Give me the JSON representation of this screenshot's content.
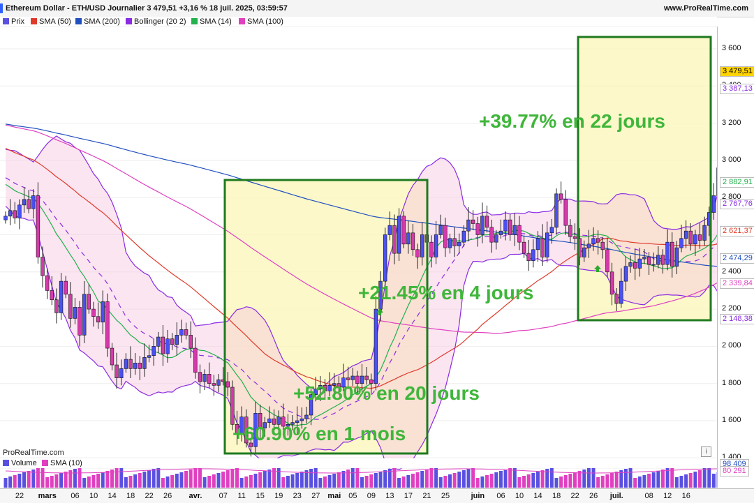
{
  "header": {
    "title": "Ethereum Dollar - ETH/USD Journalier 3 479,51 +3,16 % 18 juil. 2025, 03:59:57",
    "site": "www.ProRealTime.com"
  },
  "legend": [
    {
      "label": "Prix",
      "color": "#5a50e0"
    },
    {
      "label": "SMA (50)",
      "color": "#e03a2a"
    },
    {
      "label": "SMA (200)",
      "color": "#2050c0"
    },
    {
      "label": "Bollinger (20 2)",
      "color": "#8a2be2"
    },
    {
      "label": "SMA (14)",
      "color": "#22b14c"
    },
    {
      "label": "SMA (100)",
      "color": "#e040c0"
    }
  ],
  "watermark": "ProRealTime.com",
  "info_icon": "i",
  "volume_legend": [
    {
      "label": "Volume",
      "color": "#5a50e0"
    },
    {
      "label": "SMA (10)",
      "color": "#e040c0"
    }
  ],
  "volume_tags": [
    "98 409",
    "80 291"
  ],
  "annotations": [
    {
      "text": "+39.77% en 22 jours"
    },
    {
      "text": "+21.45% en 4 jours"
    },
    {
      "text": "+52.80% en 20 jours"
    },
    {
      "text": "+60.90% en 1 mois"
    }
  ],
  "chart_data": {
    "type": "candlestick",
    "title": "Ethereum Dollar - ETH/USD Journalier",
    "last_price": "3 479,51",
    "change": "+3,16 %",
    "ylim": [
      1300,
      3700
    ],
    "y_ticks": [
      1400,
      1600,
      1800,
      2000,
      2200,
      2400,
      2600,
      2800,
      3000,
      3200,
      3400,
      3600
    ],
    "y_tick_labels": [
      "1 400",
      "1 600",
      "1 800",
      "2 000",
      "2 200",
      "2 400",
      "2 600",
      "2 800",
      "3 000",
      "3 200",
      "3 400",
      "3 600"
    ],
    "x_labels": [
      {
        "label": "22",
        "day": 0
      },
      {
        "label": "mars",
        "day": 6,
        "bold": true
      },
      {
        "label": "06",
        "day": 12
      },
      {
        "label": "10",
        "day": 16
      },
      {
        "label": "14",
        "day": 20
      },
      {
        "label": "18",
        "day": 24
      },
      {
        "label": "22",
        "day": 28
      },
      {
        "label": "26",
        "day": 32
      },
      {
        "label": "avr.",
        "day": 38,
        "bold": true
      },
      {
        "label": "07",
        "day": 44
      },
      {
        "label": "11",
        "day": 48
      },
      {
        "label": "15",
        "day": 52
      },
      {
        "label": "19",
        "day": 56
      },
      {
        "label": "23",
        "day": 60
      },
      {
        "label": "27",
        "day": 64
      },
      {
        "label": "mai",
        "day": 68,
        "bold": true
      },
      {
        "label": "05",
        "day": 72
      },
      {
        "label": "09",
        "day": 76
      },
      {
        "label": "13",
        "day": 80
      },
      {
        "label": "17",
        "day": 84
      },
      {
        "label": "21",
        "day": 88
      },
      {
        "label": "25",
        "day": 92
      },
      {
        "label": "juin",
        "day": 99,
        "bold": true
      },
      {
        "label": "06",
        "day": 104
      },
      {
        "label": "10",
        "day": 108
      },
      {
        "label": "14",
        "day": 112
      },
      {
        "label": "18",
        "day": 116
      },
      {
        "label": "22",
        "day": 120
      },
      {
        "label": "26",
        "day": 124
      },
      {
        "label": "juil.",
        "day": 129,
        "bold": true
      },
      {
        "label": "08",
        "day": 136
      },
      {
        "label": "12",
        "day": 140
      },
      {
        "label": "16",
        "day": 144
      }
    ],
    "price_tags": [
      {
        "label": "3 479,51",
        "value": 3479.51,
        "bg": "#ffd400",
        "fg": "#000"
      },
      {
        "label": "3 387,13",
        "value": 3387.13,
        "bg": "#ffffff",
        "fg": "#8a2be2"
      },
      {
        "label": "2 882,91",
        "value": 2882.91,
        "bg": "#ffffff",
        "fg": "#22b14c"
      },
      {
        "label": "2 767,76",
        "value": 2767.76,
        "bg": "#ffffff",
        "fg": "#8a2be2"
      },
      {
        "label": "2 621,37",
        "value": 2621.37,
        "bg": "#ffffff",
        "fg": "#e03a2a"
      },
      {
        "label": "2 474,29",
        "value": 2474.29,
        "bg": "#ffffff",
        "fg": "#2050c0"
      },
      {
        "label": "2 339,84",
        "value": 2339.84,
        "bg": "#ffffff",
        "fg": "#e040c0"
      },
      {
        "label": "2 148,38",
        "value": 2148.38,
        "bg": "#ffffff",
        "fg": "#8a2be2"
      }
    ],
    "closes": [
      2700,
      2730,
      2690,
      2760,
      2790,
      2740,
      2810,
      2480,
      2380,
      2300,
      2250,
      2180,
      2350,
      2280,
      2150,
      2210,
      2060,
      2280,
      2200,
      2160,
      2130,
      2240,
      1990,
      1900,
      1830,
      1880,
      1930,
      1880,
      1910,
      1880,
      1940,
      1950,
      2000,
      2050,
      1960,
      2040,
      2010,
      2060,
      2090,
      2060,
      1990,
      1860,
      1810,
      1850,
      1800,
      1790,
      1820,
      1810,
      1780,
      1580,
      1530,
      1620,
      1480,
      1460,
      1640,
      1560,
      1590,
      1610,
      1580,
      1620,
      1570,
      1580,
      1590,
      1600,
      1610,
      1630,
      1740,
      1770,
      1790,
      1760,
      1790,
      1800,
      1780,
      1830,
      1820,
      1840,
      1800,
      1840,
      1820,
      1800,
      2200,
      2350,
      2600,
      2650,
      2500,
      2700,
      2550,
      2610,
      2520,
      2480,
      2600,
      2560,
      2480,
      2600,
      2650,
      2530,
      2580,
      2540,
      2560,
      2620,
      2680,
      2660,
      2600,
      2700,
      2640,
      2560,
      2600,
      2620,
      2680,
      2600,
      2650,
      2560,
      2500,
      2460,
      2520,
      2580,
      2480,
      2610,
      2640,
      2820,
      2790,
      2650,
      2590,
      2580,
      2480,
      2530,
      2550,
      2580,
      2560,
      2520,
      2400,
      2280,
      2230,
      2350,
      2430,
      2450,
      2420,
      2470,
      2480,
      2440,
      2440,
      2490,
      2440,
      2560,
      2430,
      2530,
      2580,
      2620,
      2550,
      2600,
      2570,
      2650,
      2720,
      2810,
      2960,
      3020,
      2970,
      3050,
      2960,
      3150,
      3370,
      3479.51
    ]
  }
}
